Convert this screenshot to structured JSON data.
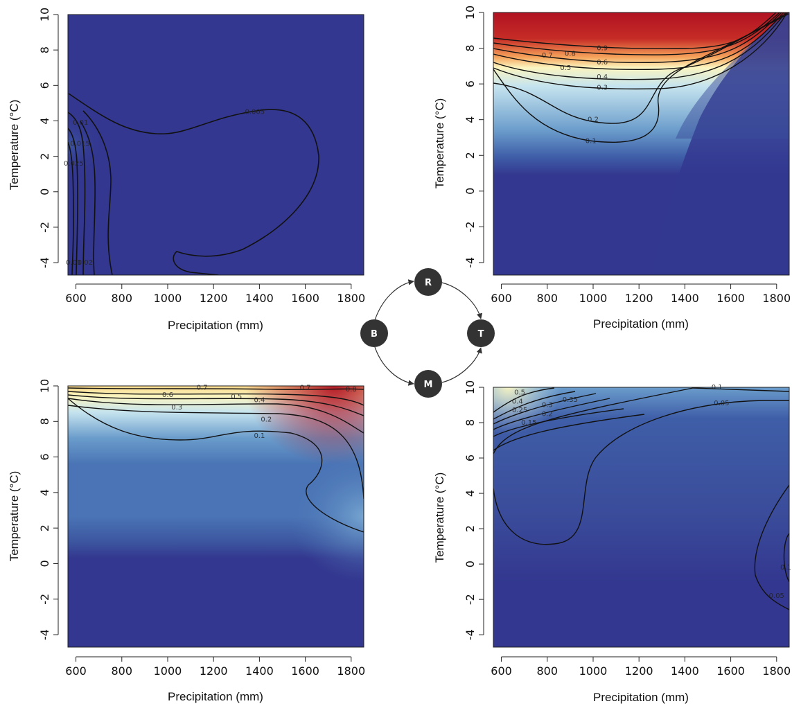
{
  "chart_data": [
    {
      "type": "contour",
      "xlabel": "Precipitation (mm)",
      "ylabel": "Temperature (°C)",
      "xlim": [
        565,
        1855
      ],
      "ylim": [
        -4.7,
        10
      ],
      "x_ticks": [
        "600",
        "800",
        "1000",
        "1200",
        "1400",
        "1600",
        "1800"
      ],
      "y_ticks": [
        "-4",
        "-2",
        "0",
        "2",
        "4",
        "6",
        "8",
        "10"
      ],
      "field": "flat_low",
      "contour_labels": [
        {
          "text": "0.005",
          "x": 1380,
          "y": 4.5
        },
        {
          "text": "0.01",
          "x": 620,
          "y": 3.9
        },
        {
          "text": "0.015",
          "x": 618,
          "y": 2.7
        },
        {
          "text": "0.025",
          "x": 590,
          "y": 1.6
        },
        {
          "text": "0.01",
          "x": 590,
          "y": -4.0
        },
        {
          "text": "0.02",
          "x": 640,
          "y": -4.0
        }
      ]
    },
    {
      "type": "contour",
      "xlabel": "Precipitation (mm)",
      "ylabel": "Temperature (°C)",
      "xlim": [
        565,
        1855
      ],
      "ylim": [
        -4.7,
        10
      ],
      "x_ticks": [
        "600",
        "800",
        "1000",
        "1200",
        "1400",
        "1600",
        "1800"
      ],
      "y_ticks": [
        "-4",
        "-2",
        "0",
        "2",
        "4",
        "6",
        "8",
        "10"
      ],
      "field": "top_hot",
      "contour_labels": [
        {
          "text": "0.9",
          "x": 1040,
          "y": 8.0
        },
        {
          "text": "0.8",
          "x": 900,
          "y": 7.7
        },
        {
          "text": "0.7",
          "x": 800,
          "y": 7.6
        },
        {
          "text": "0.6",
          "x": 1040,
          "y": 7.2
        },
        {
          "text": "0.5",
          "x": 880,
          "y": 6.9
        },
        {
          "text": "0.4",
          "x": 1040,
          "y": 6.4
        },
        {
          "text": "0.3",
          "x": 1040,
          "y": 5.8
        },
        {
          "text": "0.2",
          "x": 1000,
          "y": 4.0
        },
        {
          "text": "0.1",
          "x": 990,
          "y": 2.8
        }
      ]
    },
    {
      "type": "contour",
      "xlabel": "Precipitation (mm)",
      "ylabel": "Temperature (°C)",
      "xlim": [
        565,
        1855
      ],
      "ylim": [
        -4.7,
        10
      ],
      "x_ticks": [
        "600",
        "800",
        "1000",
        "1200",
        "1400",
        "1600",
        "1800"
      ],
      "y_ticks": [
        "-4",
        "-2",
        "0",
        "2",
        "4",
        "6",
        "8",
        "10"
      ],
      "field": "top_band",
      "contour_labels": [
        {
          "text": "0.7",
          "x": 1150,
          "y": 9.9
        },
        {
          "text": "0.6",
          "x": 1000,
          "y": 9.5
        },
        {
          "text": "0.5",
          "x": 1300,
          "y": 9.4
        },
        {
          "text": "0.4",
          "x": 1400,
          "y": 9.2
        },
        {
          "text": "0.7",
          "x": 1600,
          "y": 9.9
        },
        {
          "text": "0.8",
          "x": 1800,
          "y": 9.8
        },
        {
          "text": "0.3",
          "x": 1040,
          "y": 8.8
        },
        {
          "text": "0.2",
          "x": 1430,
          "y": 8.1
        },
        {
          "text": "0.1",
          "x": 1400,
          "y": 7.2
        }
      ]
    },
    {
      "type": "contour",
      "xlabel": "Precipitation (mm)",
      "ylabel": "Temperature (°C)",
      "xlim": [
        565,
        1855
      ],
      "ylim": [
        -4.7,
        10
      ],
      "x_ticks": [
        "600",
        "800",
        "1000",
        "1200",
        "1400",
        "1600",
        "1800"
      ],
      "y_ticks": [
        "-4",
        "-2",
        "0",
        "2",
        "4",
        "6",
        "8",
        "10"
      ],
      "field": "corner_low",
      "contour_labels": [
        {
          "text": "0.5",
          "x": 680,
          "y": 9.7
        },
        {
          "text": "0.4",
          "x": 670,
          "y": 9.2
        },
        {
          "text": "0.35",
          "x": 900,
          "y": 9.3
        },
        {
          "text": "0.3",
          "x": 800,
          "y": 9.0
        },
        {
          "text": "0.25",
          "x": 680,
          "y": 8.7
        },
        {
          "text": "0.2",
          "x": 800,
          "y": 8.5
        },
        {
          "text": "0.15",
          "x": 720,
          "y": 8.0
        },
        {
          "text": "0.1",
          "x": 1540,
          "y": 10.0
        },
        {
          "text": "0.05",
          "x": 1560,
          "y": 9.1
        },
        {
          "text": "0.1",
          "x": 1840,
          "y": -0.2
        },
        {
          "text": "0.05",
          "x": 1800,
          "y": -1.8
        }
      ]
    }
  ],
  "diagram": {
    "nodes": [
      {
        "id": "R",
        "label": "R"
      },
      {
        "id": "B",
        "label": "B"
      },
      {
        "id": "T",
        "label": "T"
      },
      {
        "id": "M",
        "label": "M"
      }
    ],
    "edges": [
      {
        "from": "B",
        "to": "R"
      },
      {
        "from": "R",
        "to": "T"
      },
      {
        "from": "B",
        "to": "M"
      },
      {
        "from": "M",
        "to": "T"
      }
    ],
    "colors": {
      "node_fill": "#333333",
      "edge": "#333333"
    }
  },
  "colors": {
    "low": "#33378f",
    "mid_blue": "#4a74b5",
    "light_blue": "#c6e4ef",
    "cream": "#fbf5c0",
    "orange": "#f6a35b",
    "red": "#b11222"
  }
}
